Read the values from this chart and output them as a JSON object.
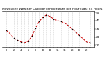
{
  "title": "Milwaukee Weather Outdoor Temperature per Hour (Last 24 Hours)",
  "hours": [
    0,
    1,
    2,
    3,
    4,
    5,
    6,
    7,
    8,
    9,
    10,
    11,
    12,
    13,
    14,
    15,
    16,
    17,
    18,
    19,
    20,
    21,
    22,
    23
  ],
  "temps": [
    28,
    24,
    19,
    16,
    14,
    13,
    15,
    21,
    31,
    39,
    44,
    47,
    45,
    42,
    40,
    39,
    37,
    34,
    30,
    26,
    22,
    18,
    14,
    13
  ],
  "line_color": "#cc0000",
  "marker_color": "#000000",
  "bg_color": "#ffffff",
  "grid_color": "#999999",
  "title_color": "#000000",
  "title_fontsize": 3.2,
  "ylim": [
    8,
    52
  ],
  "ytick_vals": [
    10,
    20,
    30,
    40,
    50
  ],
  "ytick_labels": [
    "10",
    "20",
    "30",
    "40",
    "50"
  ],
  "ylabel_fontsize": 3.0,
  "xlabel_fontsize": 2.5,
  "linewidth": 0.7,
  "markersize": 1.5
}
